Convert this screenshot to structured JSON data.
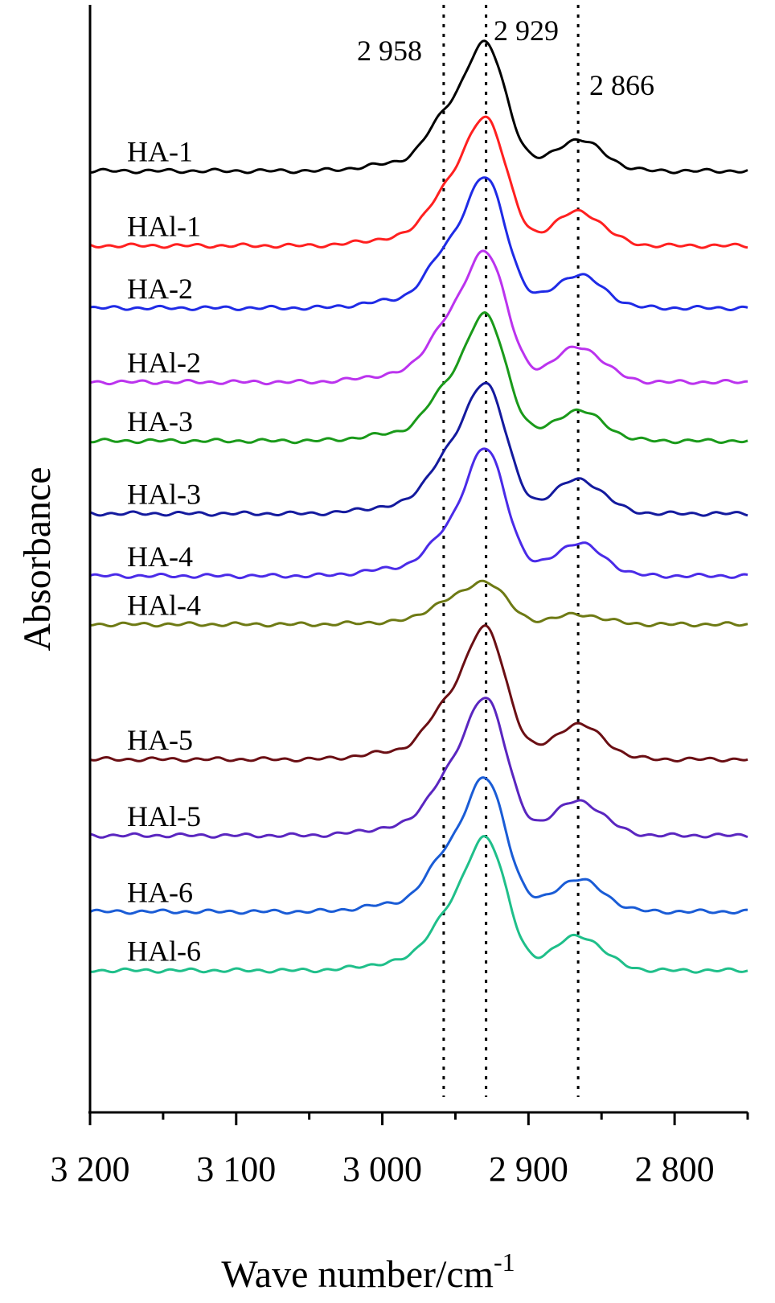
{
  "chart_data": {
    "type": "line",
    "title": "",
    "xlabel": "Wave number/cm",
    "xlabel_superscript": "-1",
    "ylabel": "Absorbance",
    "xlim": [
      3200,
      2750
    ],
    "x_reversed": true,
    "x_ticks": [
      3200,
      3100,
      3000,
      2900,
      2800
    ],
    "x_tick_labels": [
      "3 200",
      "3 100",
      "3 000",
      "2 900",
      "2 800"
    ],
    "y_ticks_shown": false,
    "grid": false,
    "legend": "none; series labeled directly at left",
    "reference_lines": [
      {
        "x": 2958,
        "label": "2 958",
        "style": "dotted"
      },
      {
        "x": 2929,
        "label": "2 929",
        "style": "dotted"
      },
      {
        "x": 2866,
        "label": "2 866",
        "style": "dotted"
      }
    ],
    "series": [
      {
        "name": "HA-1",
        "color": "#000000",
        "baseline": 13.6,
        "peak_2958": 1.15,
        "peak_2929": 1.79,
        "valley_2890": 0.7,
        "peak_2866": 0.82
      },
      {
        "name": "HAl-1",
        "color": "#ff2020",
        "baseline": 12.52,
        "peak_2958": 1.13,
        "peak_2929": 1.81,
        "valley_2890": 0.74,
        "peak_2866": 0.9
      },
      {
        "name": "HA-2",
        "color": "#1f2be6",
        "baseline": 11.62,
        "peak_2958": 1.15,
        "peak_2929": 1.83,
        "valley_2890": 0.71,
        "peak_2866": 0.87
      },
      {
        "name": "HAl-2",
        "color": "#bb33ee",
        "baseline": 10.55,
        "peak_2958": 1.18,
        "peak_2929": 1.84,
        "valley_2890": 0.74,
        "peak_2866": 0.92
      },
      {
        "name": "HA-3",
        "color": "#1a9a1a",
        "baseline": 9.7,
        "peak_2958": 1.05,
        "peak_2929": 1.77,
        "valley_2890": 0.63,
        "peak_2866": 0.8
      },
      {
        "name": "HAl-3",
        "color": "#141a9e",
        "baseline": 8.65,
        "peak_2958": 1.15,
        "peak_2929": 1.84,
        "valley_2890": 0.76,
        "peak_2866": 0.9
      },
      {
        "name": "HA-4",
        "color": "#4a2be8",
        "baseline": 7.75,
        "peak_2958": 0.8,
        "peak_2929": 1.8,
        "valley_2890": 0.5,
        "peak_2866": 0.86
      },
      {
        "name": "HAl-4",
        "color": "#6e7a14",
        "baseline": 7.05,
        "peak_2958": 0.47,
        "peak_2929": 0.6,
        "valley_2890": 0.22,
        "peak_2866": 0.26
      },
      {
        "name": "HA-5",
        "color": "#6b0f14",
        "baseline": 5.1,
        "peak_2958": 1.08,
        "peak_2929": 1.85,
        "valley_2890": 0.73,
        "peak_2866": 0.92
      },
      {
        "name": "HAl-5",
        "color": "#5a26c0",
        "baseline": 4.0,
        "peak_2958": 1.15,
        "peak_2929": 1.95,
        "valley_2890": 0.72,
        "peak_2866": 0.91
      },
      {
        "name": "HA-6",
        "color": "#1a5cd6",
        "baseline": 2.9,
        "peak_2958": 1.17,
        "peak_2929": 1.87,
        "valley_2890": 0.68,
        "peak_2866": 0.85
      },
      {
        "name": "HAl-6",
        "color": "#1fbf8a",
        "baseline": 2.05,
        "peak_2958": 1.07,
        "peak_2929": 1.88,
        "valley_2890": 0.72,
        "peak_2866": 0.91
      }
    ]
  }
}
